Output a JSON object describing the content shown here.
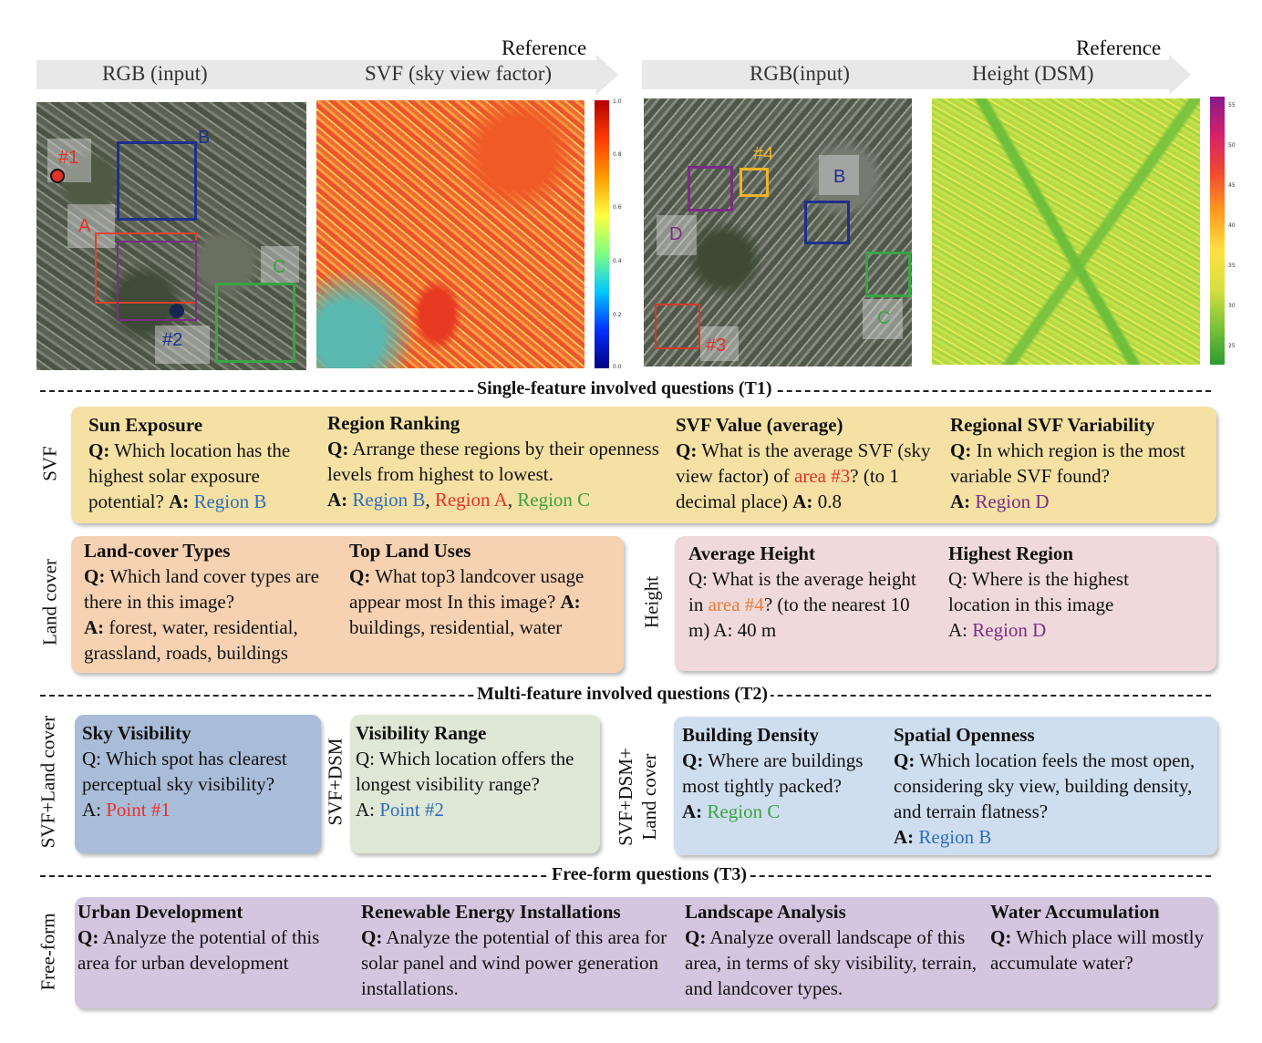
{
  "top": {
    "left_headers": [
      "RGB (input)",
      "SVF (sky view factor)"
    ],
    "right_headers": [
      "RGB(input)",
      "Height (DSM)"
    ],
    "reference": "Reference",
    "svf_ticks": [
      "1.0",
      "0.8",
      "0.6",
      "0.4",
      "0.2",
      "0.0"
    ],
    "dsm_ticks": [
      "55",
      "50",
      "45",
      "40",
      "35",
      "30",
      "25"
    ],
    "left_labels": {
      "p1": "#1",
      "p2": "#2",
      "a": "A",
      "b": "B",
      "c": "C"
    },
    "right_labels": {
      "p3": "#3",
      "p4": "#4",
      "b": "B",
      "c": "C",
      "d": "D"
    }
  },
  "sections": {
    "t1": "Single-feature involved questions (T1)",
    "t2": "Multi-feature involved questions (T2)",
    "t3": "Free-form questions (T3)"
  },
  "rows": {
    "svf": "SVF",
    "landcover": "Land cover",
    "height": "Height",
    "svf_landcover": "SVF+Land cover",
    "svf_dsm": "SVF+DSM",
    "svf_dsm_lc_1": "SVF+DSM+",
    "svf_dsm_lc_2": "Land cover",
    "freeform": "Free-form"
  },
  "svf_panel": {
    "sun": {
      "title": "Sun Exposure",
      "q": "Which location has the highest solar exposure potential?",
      "a": "Region B"
    },
    "rank": {
      "title": "Region Ranking",
      "q": "Arrange these regions by their openness levels from highest to lowest.",
      "a1": "Region B",
      "a2": "Region A",
      "a3": "Region C"
    },
    "value": {
      "title": "SVF Value (average)",
      "q1": "What is the average SVF (sky view factor) of",
      "area": "area #3",
      "q2": "? (to 1 decimal place)",
      "a": "0.8"
    },
    "var": {
      "title": "Regional SVF Variability",
      "q": "In which region is the most variable SVF found?",
      "a": "Region D"
    }
  },
  "lc_panel": {
    "types": {
      "title": "Land-cover Types",
      "q": "Which land cover types are there in this image?",
      "a": "forest, water, residential, grassland, roads, buildings"
    },
    "uses": {
      "title": "Top Land Uses",
      "q": "What top3 landcover usage appear most In this image?",
      "a": "buildings, residential, water"
    }
  },
  "height_panel": {
    "avg": {
      "title": "Average Height",
      "q1": "Q: What is the average height in",
      "area": "area #4",
      "q2": "? (to the nearest 10 m) A: 40 m"
    },
    "high": {
      "title": "Highest Region",
      "q": "Q: Where is the highest location in this image",
      "a": "Region D"
    }
  },
  "t2": {
    "sky": {
      "title": "Sky Visibility",
      "q": "Q: Which spot has clearest perceptual sky visibility?",
      "a": "Point #1"
    },
    "range": {
      "title": "Visibility Range",
      "q": "Q: Which location offers the longest visibility range?",
      "a": "Point #2"
    },
    "density": {
      "title": "Building Density",
      "q": "Where are buildings most tightly packed?",
      "a": "Region C"
    },
    "open": {
      "title": "Spatial Openness",
      "q": "Which location feels the most open, considering sky view, building density, and terrain flatness?",
      "a": "Region B"
    }
  },
  "t3": {
    "urban": {
      "title": "Urban Development",
      "q": "Analyze the potential of this area for urban development"
    },
    "energy": {
      "title": "Renewable Energy Installations",
      "q": "Analyze the potential of this area for solar panel and wind power generation installations."
    },
    "landscape": {
      "title": "Landscape Analysis",
      "q": "Analyze overall landscape of this area, in terms of sky visibility, terrain, and landcover types."
    },
    "water": {
      "title": "Water Accumulation",
      "q": "Which place will mostly accumulate water?"
    }
  },
  "labels": {
    "q": "Q:",
    "a": "A:",
    "a_plain": "A: "
  },
  "colors": {
    "svf_panel": "#f5e1a4",
    "lc_panel": "#f6d2b2",
    "height_panel": "#f0d9da",
    "sky_panel": "#a9bcd8",
    "range_panel": "#dfe7d6",
    "density_panel": "#cfdeef",
    "freeform_panel": "#d5c6e0"
  }
}
